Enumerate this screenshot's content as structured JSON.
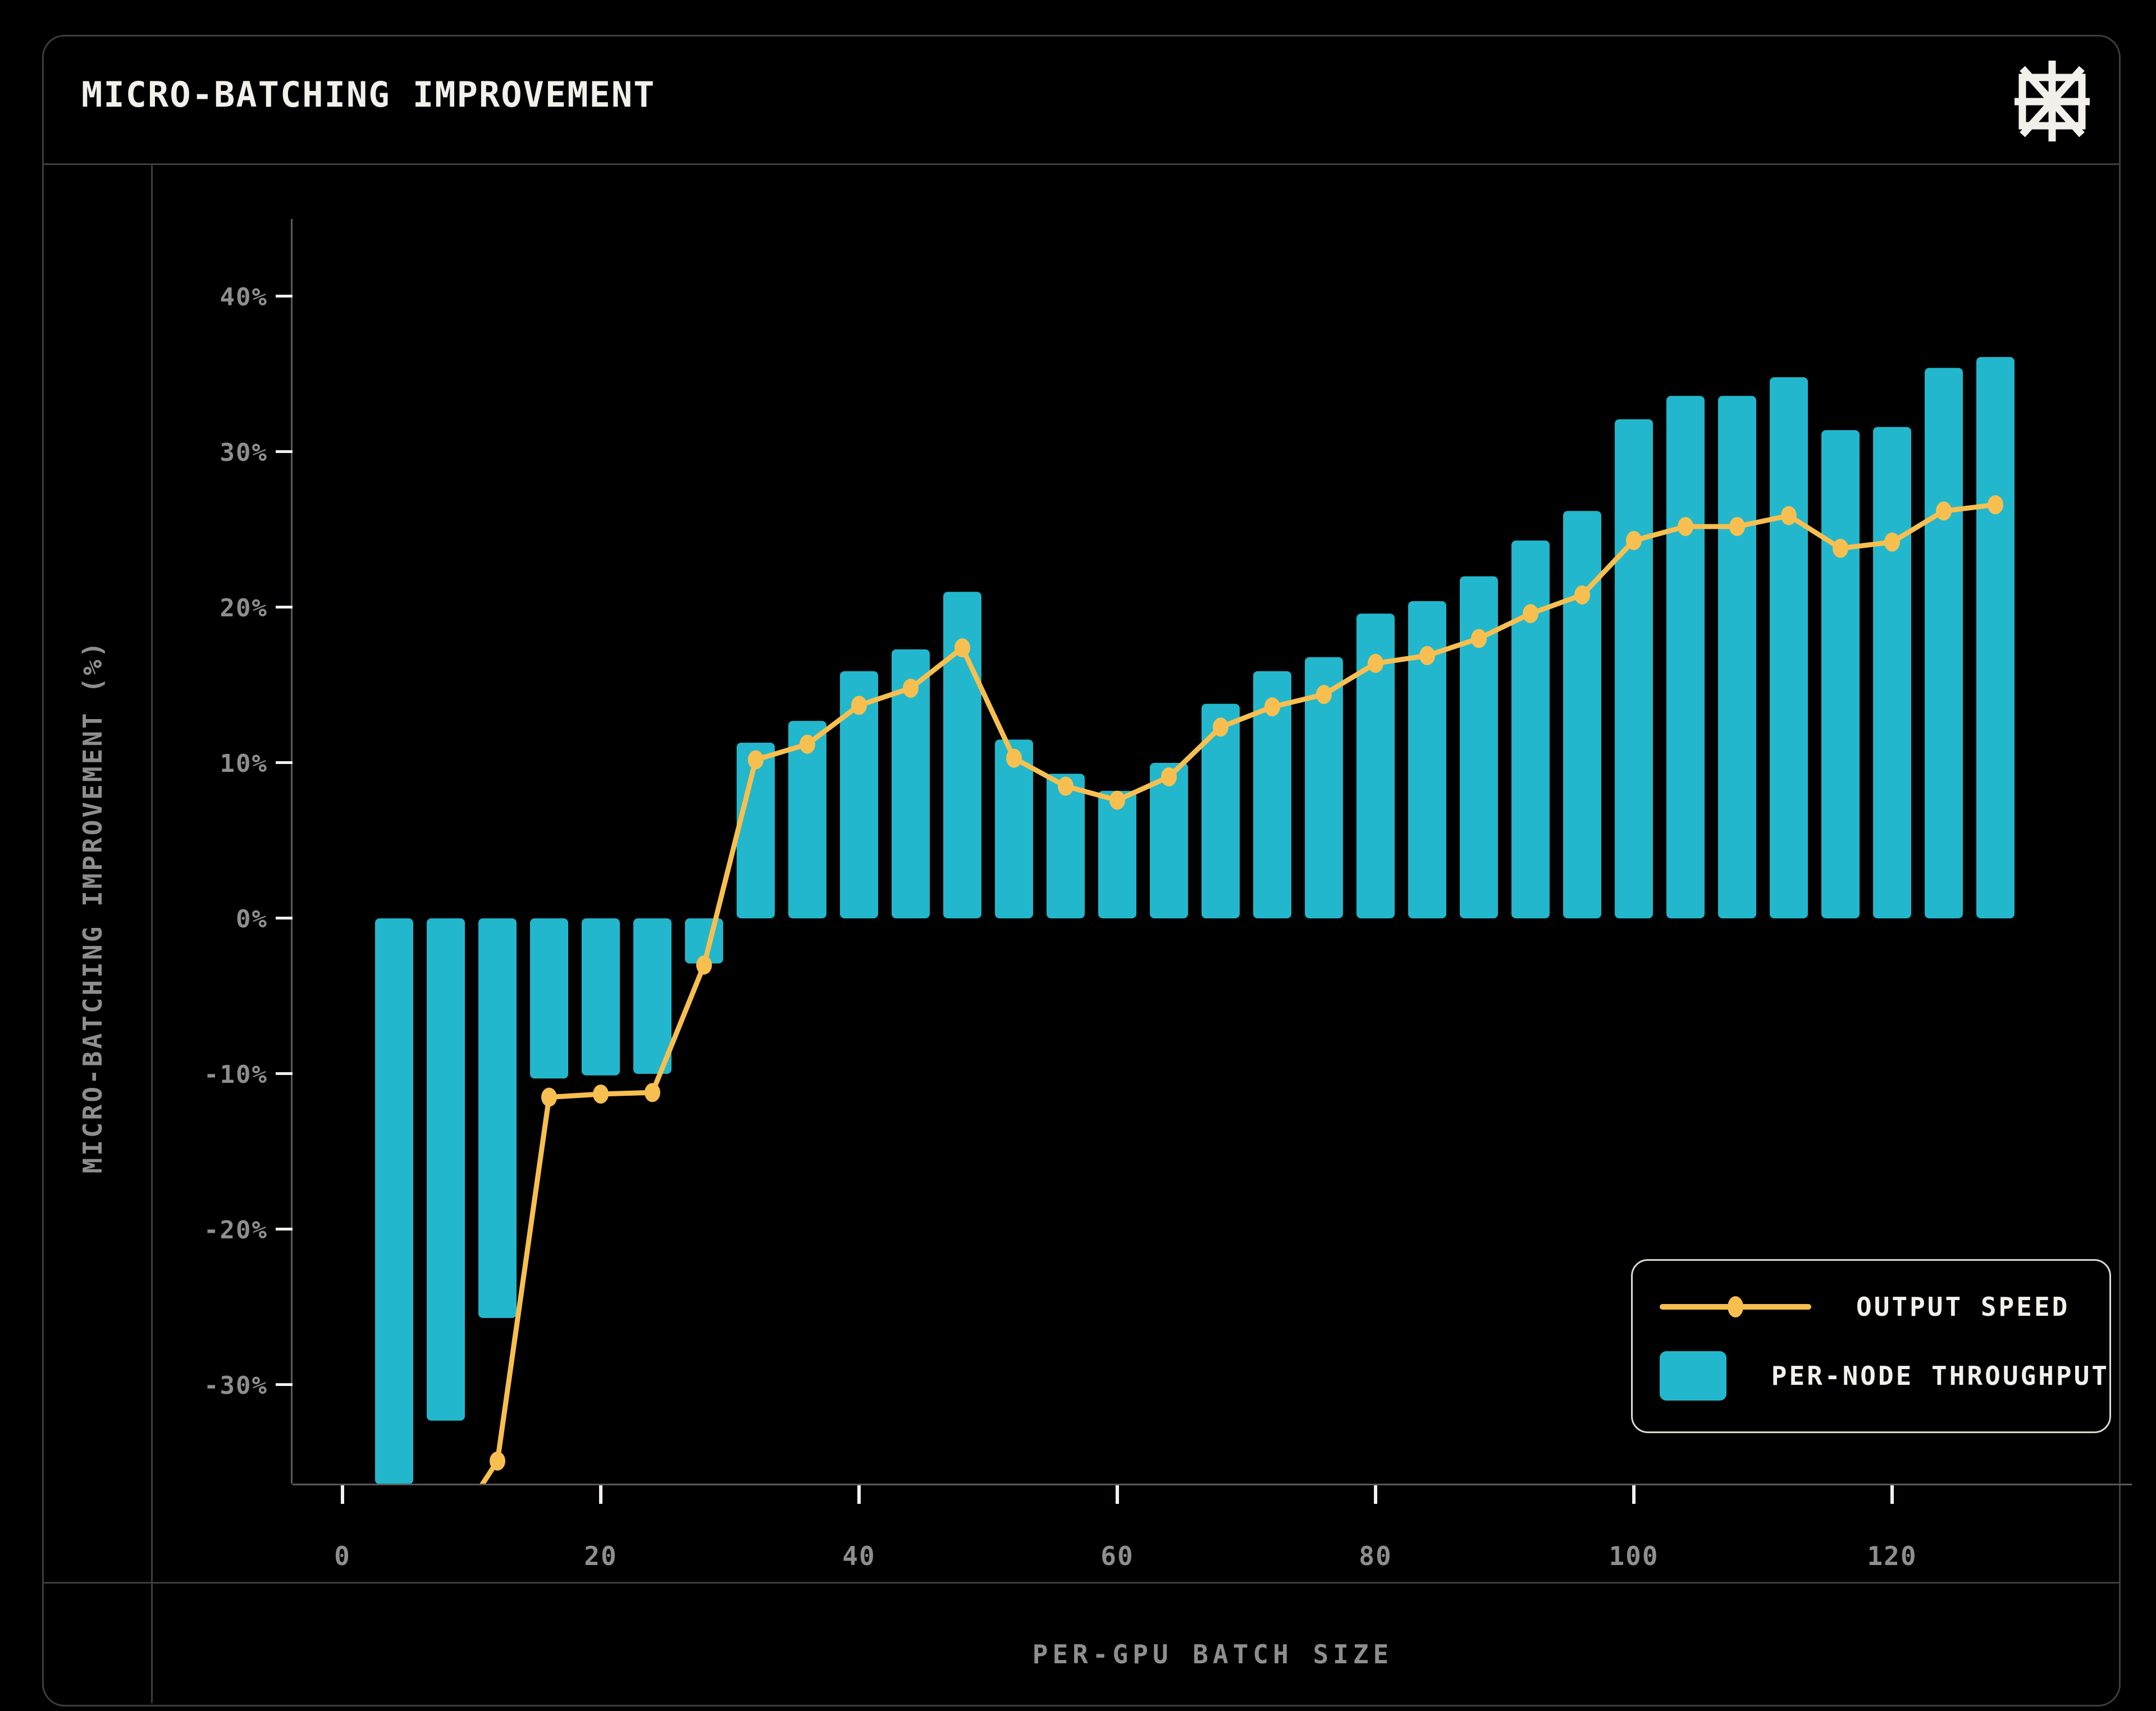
{
  "header": {
    "title": "MICRO-BATCHING IMPROVEMENT",
    "logo_icon": "asterisk-logo"
  },
  "colors": {
    "background": "#000000",
    "bar_cyan": "#22b7cc",
    "line_orange": "#f7bf50",
    "text_primary": "#f2f0ea",
    "text_muted": "#8e8e8e",
    "frame_line": "#3d3d3d",
    "axis_line": "#5a5a5a",
    "tick_mark": "#f2f0ea",
    "legend_border": "#dbd9d2"
  },
  "axes": {
    "x_title": "PER-GPU BATCH SIZE",
    "y_title": "MICRO-BATCHING IMPROVEMENT (%)"
  },
  "legend": {
    "items": [
      {
        "label": "OUTPUT SPEED",
        "marker": "line-dot",
        "color": "#f7bf50"
      },
      {
        "label": "PER-NODE THROUGHPUT",
        "marker": "bar-swatch",
        "color": "#22b7cc"
      }
    ]
  },
  "chart_data": {
    "type": "bar+line",
    "title": "MICRO-BATCHING IMPROVEMENT",
    "xlabel": "PER-GPU BATCH SIZE",
    "ylabel": "MICRO-BATCHING IMPROVEMENT (%)",
    "categories": [
      4,
      8,
      12,
      16,
      20,
      24,
      28,
      32,
      36,
      40,
      44,
      48,
      52,
      56,
      60,
      64,
      68,
      72,
      76,
      80,
      84,
      88,
      92,
      96,
      100,
      104,
      108,
      112,
      116,
      120,
      124,
      128
    ],
    "series": [
      {
        "name": "PER-NODE THROUGHPUT",
        "type": "bar",
        "color": "#22b7cc",
        "values": [
          -36.4,
          -32.3,
          -25.7,
          -10.3,
          -10.1,
          -10.0,
          -2.9,
          11.3,
          12.7,
          15.9,
          17.3,
          21.0,
          11.5,
          9.3,
          8.2,
          10.0,
          13.8,
          15.9,
          16.8,
          19.6,
          20.4,
          22.0,
          24.3,
          26.2,
          32.1,
          33.6,
          33.6,
          34.8,
          31.4,
          31.6,
          35.4,
          36.1
        ]
      },
      {
        "name": "OUTPUT SPEED",
        "type": "line",
        "color": "#f7bf50",
        "values": [
          null,
          -40.0,
          -34.9,
          -11.5,
          -11.3,
          -11.2,
          -3.0,
          10.2,
          11.2,
          13.7,
          14.8,
          17.4,
          10.3,
          8.5,
          7.6,
          9.1,
          12.3,
          13.6,
          14.4,
          16.4,
          16.9,
          18.0,
          19.6,
          20.8,
          24.3,
          25.2,
          25.2,
          25.9,
          23.8,
          24.2,
          26.2,
          26.6
        ]
      }
    ],
    "ylim": [
      -36.4,
      45.0
    ],
    "xlim": [
      -3.9,
      138.6
    ],
    "y_ticks": [
      {
        "value": 40,
        "label": "40%"
      },
      {
        "value": 30,
        "label": "30%"
      },
      {
        "value": 20,
        "label": "20%"
      },
      {
        "value": 10,
        "label": "10%"
      },
      {
        "value": 0,
        "label": "0%"
      },
      {
        "value": -10,
        "label": "-10%"
      },
      {
        "value": -20,
        "label": "-20%"
      },
      {
        "value": -30,
        "label": "-30%"
      }
    ],
    "x_ticks": [
      {
        "value": 0,
        "label": "0"
      },
      {
        "value": 20,
        "label": "20"
      },
      {
        "value": 40,
        "label": "40"
      },
      {
        "value": 60,
        "label": "60"
      },
      {
        "value": 80,
        "label": "80"
      },
      {
        "value": 100,
        "label": "100"
      },
      {
        "value": 120,
        "label": "120"
      }
    ],
    "grid": false,
    "legend_position": "lower-right",
    "notes": "First bar and the leading line segment extend below the plot bottom and are clipped; line value at batch 8 estimated from visible slope."
  }
}
